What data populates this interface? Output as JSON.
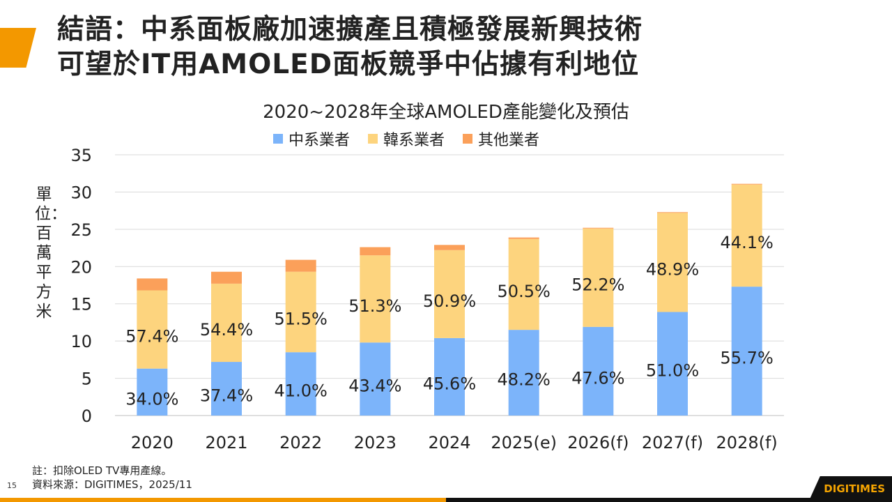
{
  "slide": {
    "title_line1": "結語：中系面板廠加速擴產且積極發展新興技術",
    "title_line2": "可望於IT用AMOLED面板競爭中佔據有利地位",
    "note": "註：扣除OLED TV專用產線。",
    "source": "資料來源：DIGITIMES，2025/11",
    "page_number": "15",
    "logo": "DIGITIMES",
    "accent_color": "#f39800"
  },
  "chart_data": {
    "type": "bar",
    "stacked": true,
    "title": "2020~2028年全球AMOLED產能變化及預估",
    "ylabel": "單位：百萬平方米",
    "xlabel": "",
    "ylim": [
      0,
      35
    ],
    "yticks": [
      0,
      5,
      10,
      15,
      20,
      25,
      30,
      35
    ],
    "grid": true,
    "legend_position": "top",
    "categories": [
      "2020",
      "2021",
      "2022",
      "2023",
      "2024",
      "2025(e)",
      "2026(f)",
      "2027(f)",
      "2028(f)"
    ],
    "series": [
      {
        "name": "中系業者",
        "color": "#7cb4fa",
        "values": [
          6.3,
          7.2,
          8.5,
          9.8,
          10.4,
          11.5,
          11.9,
          13.9,
          17.3
        ],
        "labels": [
          "34.0%",
          "37.4%",
          "41.0%",
          "43.4%",
          "45.6%",
          "48.2%",
          "47.6%",
          "51.0%",
          "55.7%"
        ]
      },
      {
        "name": "韓系業者",
        "color": "#fdd47e",
        "values": [
          10.5,
          10.5,
          10.8,
          11.7,
          11.8,
          12.2,
          13.2,
          13.3,
          13.7
        ],
        "labels": [
          "57.4%",
          "54.4%",
          "51.5%",
          "51.3%",
          "50.9%",
          "50.5%",
          "52.2%",
          "48.9%",
          "44.1%"
        ]
      },
      {
        "name": "其他業者",
        "color": "#fba05a",
        "values": [
          1.6,
          1.6,
          1.6,
          1.1,
          0.7,
          0.2,
          0.1,
          0.1,
          0.1
        ]
      }
    ]
  }
}
